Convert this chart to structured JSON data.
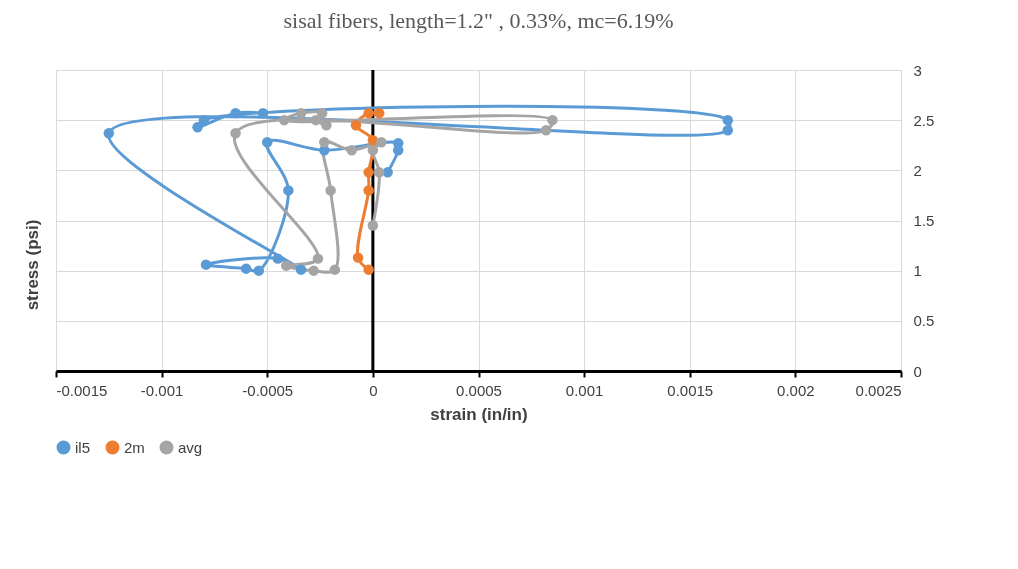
{
  "chart_data": {
    "type": "line",
    "title": "sisal fibers, length=1.2\" , 0.33%, mc=6.19%",
    "xlabel": "strain (in/in)",
    "ylabel": "stress (psi)",
    "xlim": [
      -0.0015,
      0.0025
    ],
    "xticks": [
      -0.0015,
      -0.001,
      -0.0005,
      0,
      0.0005,
      0.001,
      0.0015,
      0.002,
      0.0025
    ],
    "ylim": [
      0,
      3
    ],
    "yticks": [
      0,
      0.5,
      1,
      1.5,
      2,
      2.5,
      3
    ],
    "grid": true,
    "legend": "bottom",
    "marker": "circle",
    "line_style": "solid",
    "series": [
      {
        "name": "il5",
        "color": "#5b9bd5",
        "x": [
          7e-05,
          0.00012,
          0.00012,
          -0.00023,
          -0.0005,
          -0.0004,
          -0.00054,
          -0.0006,
          -0.00079,
          -0.00045,
          -0.00034,
          -0.00125,
          0.00168,
          0.00168,
          -0.0008,
          -0.00083,
          -0.00065,
          -0.00052
        ],
        "values": [
          1.98,
          2.2,
          2.27,
          2.2,
          2.28,
          1.8,
          1.0,
          1.02,
          1.06,
          1.12,
          1.01,
          2.37,
          2.4,
          2.5,
          2.5,
          2.43,
          2.57,
          2.57
        ]
      },
      {
        "name": "2m",
        "color": "#ed7d31",
        "x": [
          -2e-05,
          -7e-05,
          -2e-05,
          -2e-05,
          0,
          -8e-05,
          -2e-05,
          3e-05
        ],
        "values": [
          1.01,
          1.13,
          1.8,
          1.98,
          2.3,
          2.45,
          2.57,
          2.57
        ]
      },
      {
        "name": "avg",
        "color": "#a5a5a5",
        "x": [
          0,
          3e-05,
          0,
          4e-05,
          -0.0001,
          -0.00023,
          -0.0002,
          -0.00018,
          -0.00028,
          -0.00041,
          -0.00026,
          -0.00065,
          0.00082,
          0.00085,
          -0.00042,
          -0.00034,
          -0.00024,
          -0.00027,
          -0.00022
        ],
        "values": [
          1.45,
          1.98,
          2.2,
          2.28,
          2.2,
          2.28,
          1.8,
          1.01,
          1.0,
          1.05,
          1.12,
          2.37,
          2.4,
          2.5,
          2.5,
          2.57,
          2.57,
          2.5,
          2.45
        ]
      }
    ]
  }
}
